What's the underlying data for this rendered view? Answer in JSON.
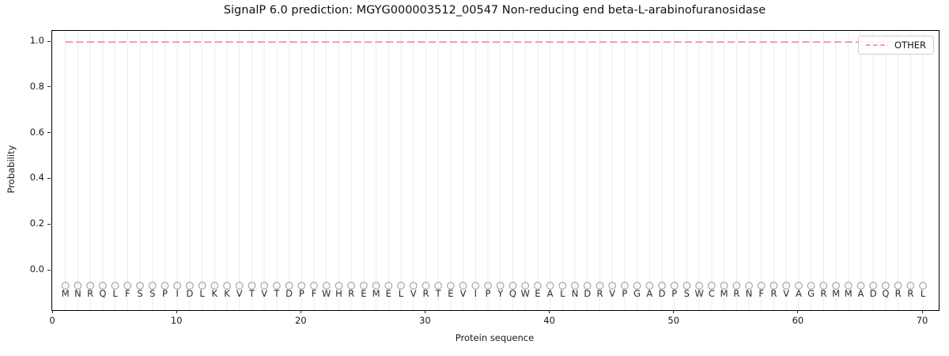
{
  "title": "SignalP 6.0 prediction: MGYG000003512_00547 Non-reducing end beta-L-arabinofuranosidase",
  "legend": {
    "label": "OTHER",
    "line_color": "#f08080",
    "line_style": "dashed"
  },
  "colors": {
    "grid": "#ededed",
    "spine": "#000000",
    "residue_circle": "#a0a0a0",
    "residue_letter": "#2e2e2e",
    "tick": "#262626"
  },
  "chart_data": {
    "type": "line",
    "title": "SignalP 6.0 prediction: MGYG000003512_00547 Non-reducing end beta-L-arabinofuranosidase",
    "xlabel": "Protein sequence",
    "ylabel": "Probability",
    "xlim": [
      -0.064,
      71.27
    ],
    "ylim": [
      -0.173,
      1.049
    ],
    "xticks": [
      0,
      10,
      20,
      30,
      40,
      50,
      60,
      70
    ],
    "xtick_labels": [
      "0",
      "10",
      "20",
      "30",
      "40",
      "50",
      "60",
      "70"
    ],
    "yticks": [
      0.0,
      0.2,
      0.4,
      0.6,
      0.8,
      1.0
    ],
    "ytick_labels": [
      "0.0",
      "0.2",
      "0.4",
      "0.6",
      "0.8",
      "1.0"
    ],
    "grid": "vertical line at every residue position 1-70",
    "legend_position": "upper right",
    "series": [
      {
        "name": "OTHER",
        "style": "dashed",
        "color": "#f08080",
        "x_start": 1,
        "x_end": 70,
        "constant_y": 1.0,
        "note": "OTHER probability is constant 1.0 across all 70 residues"
      }
    ],
    "sequence": "MNRQLFSSPIDLKKVTVTDPFWHREMELVRTEVIPYQWEALNDRVPGADPSWCMRNFRVAGRMMADQRRL",
    "sequence_length": 70,
    "residue_marker": {
      "shape": "open-circle",
      "y": -0.066
    },
    "residue_label_y": -0.1
  }
}
